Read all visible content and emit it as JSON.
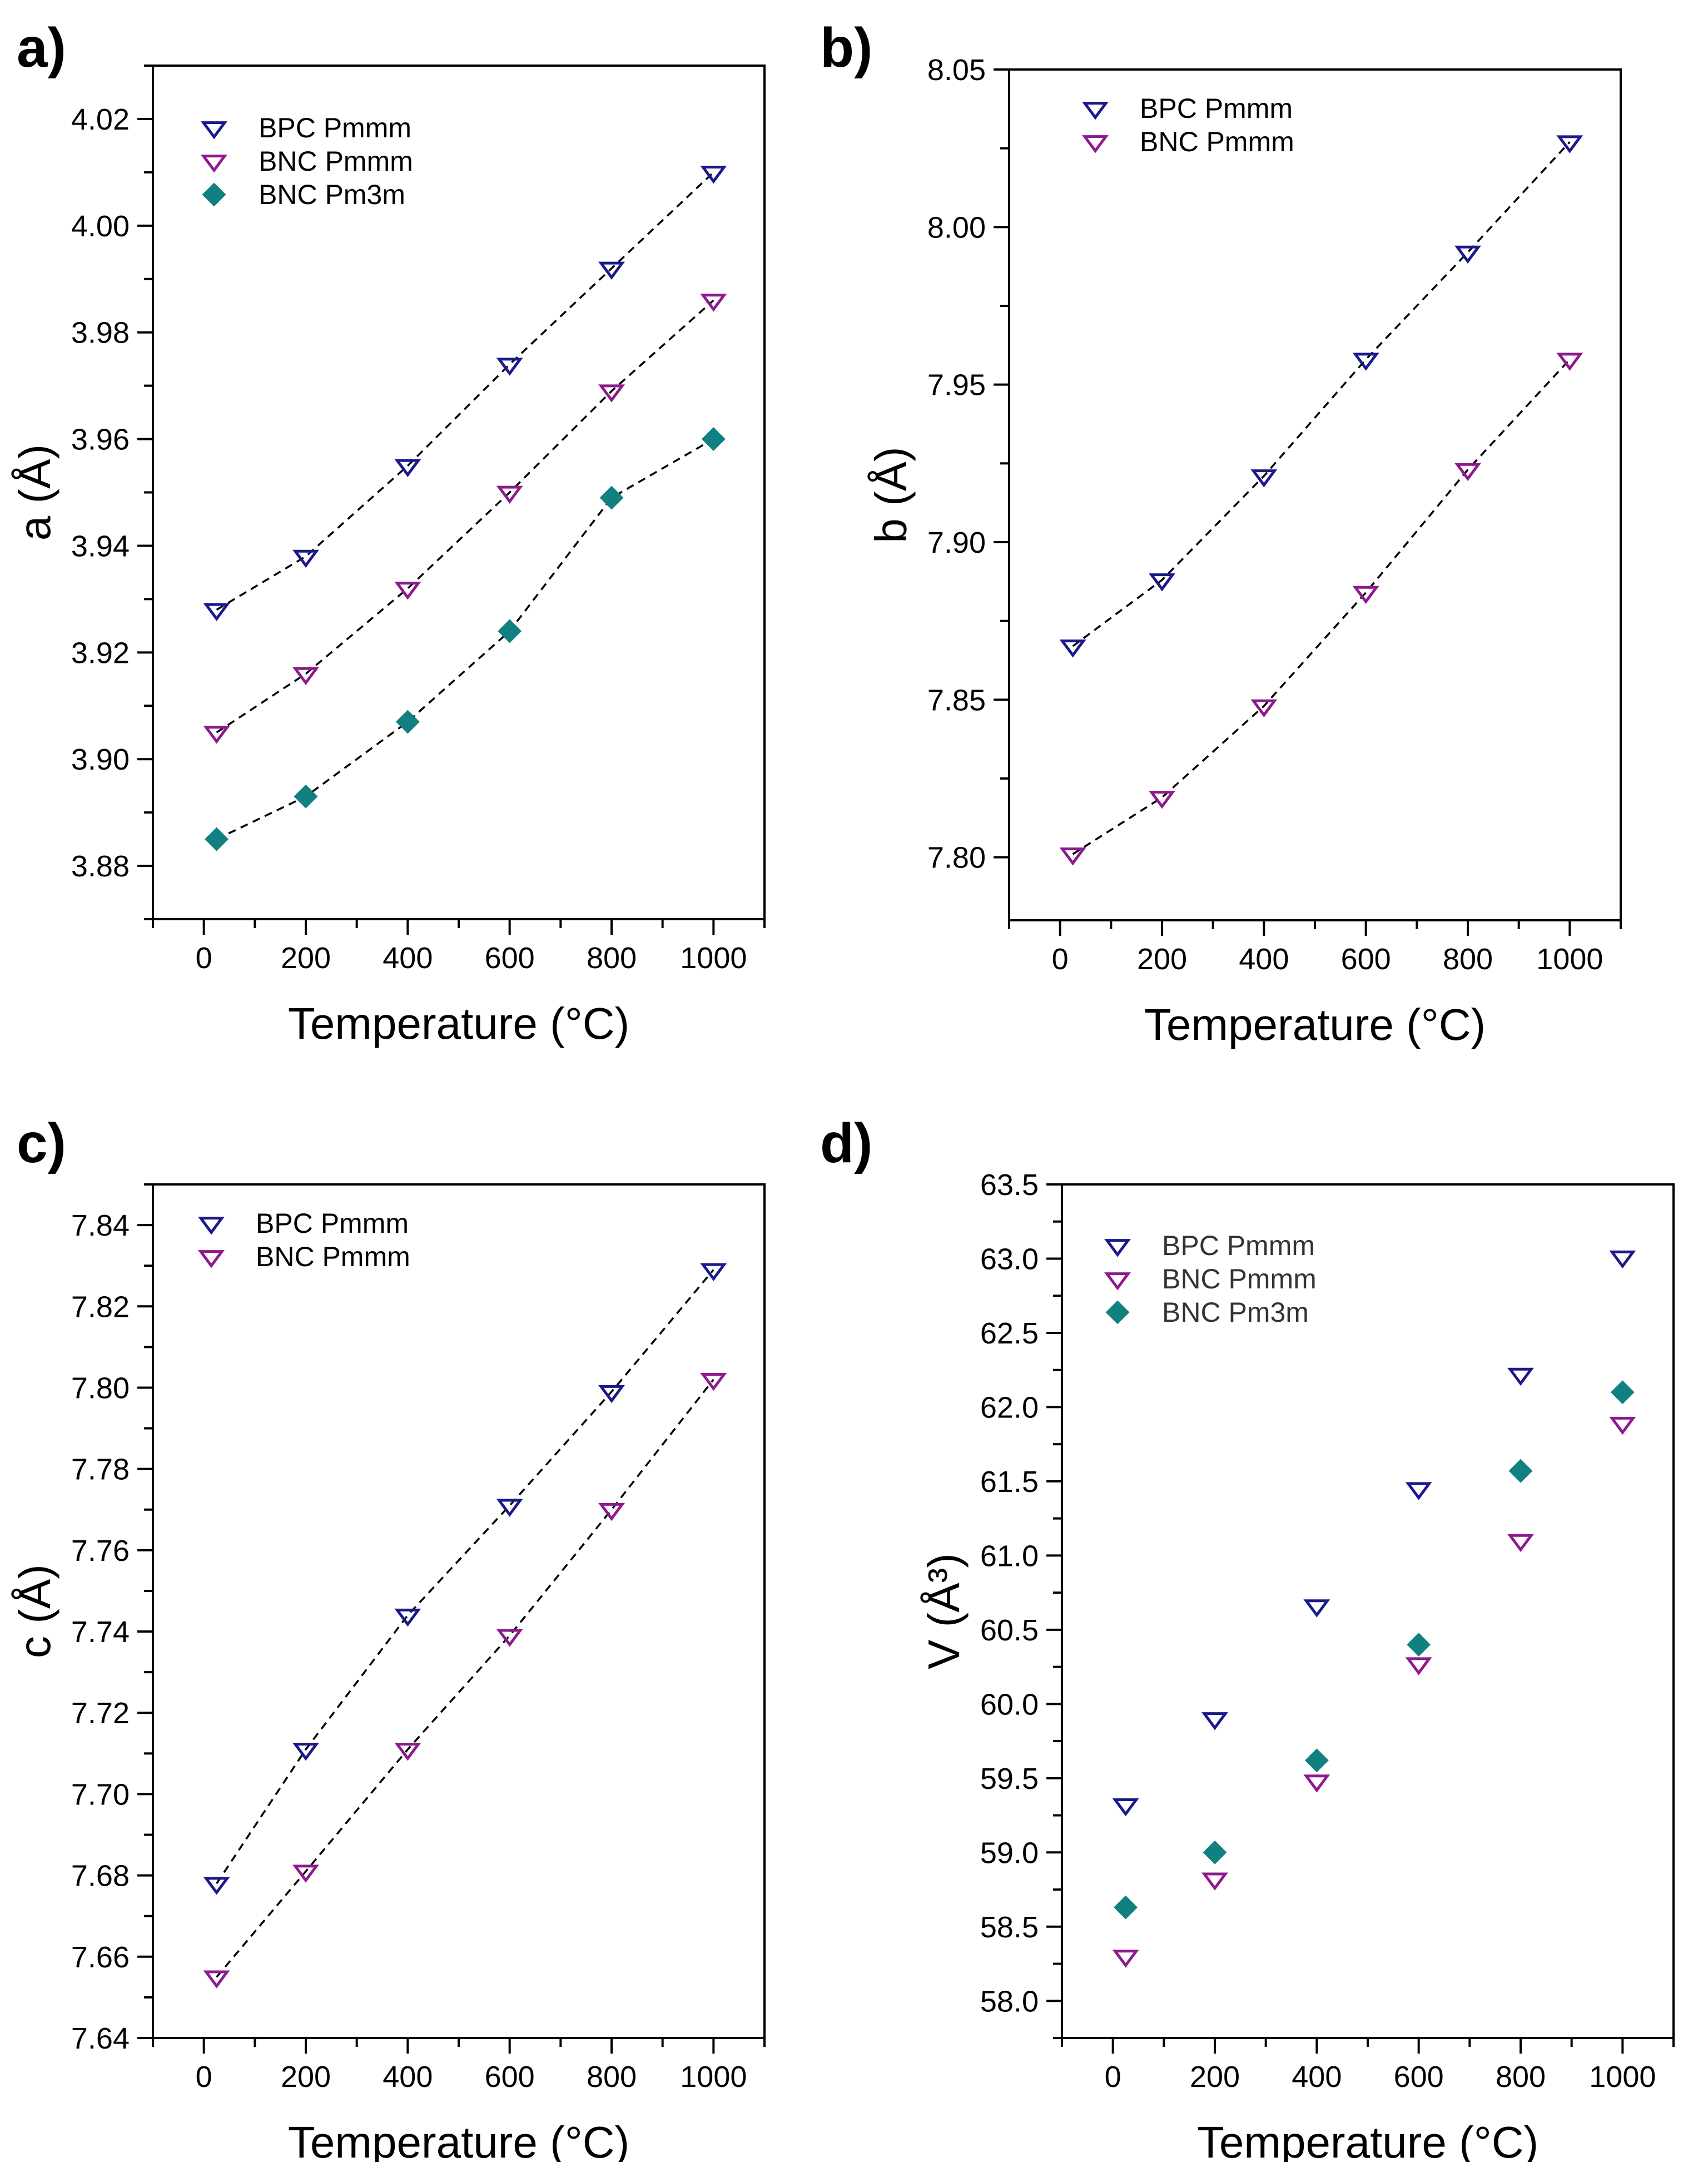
{
  "colors": {
    "bpc_pmmm": "#1a1a8c",
    "bnc_pmmm": "#8e1a8e",
    "bnc_pm3m": "#108080"
  },
  "chart_data": [
    {
      "panel": "a)",
      "type": "scatter",
      "xlabel": "Temperature (°C)",
      "ylabel": "a (Å)",
      "xlim": [
        -100,
        1100
      ],
      "ylim": [
        3.87,
        4.03
      ],
      "xticks": [
        0,
        200,
        400,
        600,
        800,
        1000
      ],
      "yticks": [
        3.88,
        3.9,
        3.92,
        3.94,
        3.96,
        3.98,
        4.0,
        4.02
      ],
      "ytick_labels": [
        "3.88",
        "3.90",
        "3.92",
        "3.94",
        "3.96",
        "3.98",
        "4.00",
        "4.02"
      ],
      "legend_position": "top-left",
      "x": [
        25,
        200,
        400,
        600,
        800,
        1000
      ],
      "series": [
        {
          "name": "BPC Pmmm",
          "marker": "open-triangle-down",
          "color": "#1a1a8c",
          "values": [
            3.928,
            3.938,
            3.955,
            3.974,
            3.992,
            4.01
          ],
          "fit_line": true
        },
        {
          "name": "BNC Pmmm",
          "marker": "open-triangle-down",
          "color": "#8e1a8e",
          "values": [
            3.905,
            3.916,
            3.932,
            3.95,
            3.969,
            3.986
          ],
          "fit_line": true
        },
        {
          "name": "BNC Pm3m",
          "marker": "filled-diamond",
          "color": "#108080",
          "values": [
            3.885,
            3.893,
            3.907,
            3.924,
            3.949,
            3.96
          ],
          "fit_line": true
        }
      ]
    },
    {
      "panel": "b)",
      "type": "scatter",
      "xlabel": "Temperature (°C)",
      "ylabel": "b (Å)",
      "xlim": [
        -100,
        1100
      ],
      "ylim": [
        7.78,
        8.05
      ],
      "xticks": [
        0,
        200,
        400,
        600,
        800,
        1000
      ],
      "yticks": [
        7.8,
        7.85,
        7.9,
        7.95,
        8.0,
        8.05
      ],
      "ytick_labels": [
        "7.80",
        "7.85",
        "7.90",
        "7.95",
        "8.00",
        "8.05"
      ],
      "legend_position": "top-left",
      "x": [
        25,
        200,
        400,
        600,
        800,
        1000
      ],
      "series": [
        {
          "name": "BPC Pmmm",
          "marker": "open-triangle-down",
          "color": "#1a1a8c",
          "values": [
            7.867,
            7.888,
            7.921,
            7.958,
            7.992,
            8.027
          ],
          "fit_line": true
        },
        {
          "name": "BNC Pmmm",
          "marker": "open-triangle-down",
          "color": "#8e1a8e",
          "values": [
            7.801,
            7.819,
            7.848,
            7.884,
            7.923,
            7.958
          ],
          "fit_line": true
        }
      ]
    },
    {
      "panel": "c)",
      "type": "scatter",
      "xlabel": "Temperature (°C)",
      "ylabel": "c (Å)",
      "xlim": [
        -100,
        1100
      ],
      "ylim": [
        7.64,
        7.85
      ],
      "xticks": [
        0,
        200,
        400,
        600,
        800,
        1000
      ],
      "yticks": [
        7.64,
        7.66,
        7.68,
        7.7,
        7.72,
        7.74,
        7.76,
        7.78,
        7.8,
        7.82,
        7.84
      ],
      "ytick_labels": [
        "7.64",
        "7.66",
        "7.68",
        "7.70",
        "7.72",
        "7.74",
        "7.76",
        "7.78",
        "7.80",
        "7.82",
        "7.84"
      ],
      "legend_position": "top-left",
      "x": [
        25,
        200,
        400,
        600,
        800,
        1000
      ],
      "series": [
        {
          "name": "BPC Pmmm",
          "marker": "open-triangle-down",
          "color": "#1a1a8c",
          "values": [
            7.678,
            7.711,
            7.744,
            7.771,
            7.799,
            7.829
          ],
          "fit_line": true
        },
        {
          "name": "BNC Pmmm",
          "marker": "open-triangle-down",
          "color": "#8e1a8e",
          "values": [
            7.655,
            7.681,
            7.711,
            7.739,
            7.77,
            7.802
          ],
          "fit_line": true
        }
      ]
    },
    {
      "panel": "d)",
      "type": "scatter",
      "xlabel": "Temperature (°C)",
      "ylabel": "V (Å³)",
      "xlim": [
        -100,
        1100
      ],
      "ylim": [
        57.75,
        63.5
      ],
      "xticks": [
        0,
        200,
        400,
        600,
        800,
        1000
      ],
      "yticks": [
        58.0,
        58.5,
        59.0,
        59.5,
        60.0,
        60.5,
        61.0,
        61.5,
        62.0,
        62.5,
        63.0,
        63.5
      ],
      "ytick_labels": [
        "58.0",
        "58.5",
        "59.0",
        "59.5",
        "60.0",
        "60.5",
        "61.0",
        "61.5",
        "62.0",
        "62.5",
        "63.0",
        "63.5"
      ],
      "legend_position": "top-left",
      "x": [
        25,
        200,
        400,
        600,
        800,
        1000
      ],
      "series": [
        {
          "name": "BPC Pmmm",
          "marker": "open-triangle-down",
          "color": "#1a1a8c",
          "values": [
            59.32,
            59.9,
            60.66,
            61.45,
            62.22,
            63.01
          ],
          "fit_line": false
        },
        {
          "name": "BNC Pmmm",
          "marker": "open-triangle-down",
          "color": "#8e1a8e",
          "values": [
            58.3,
            58.82,
            59.48,
            60.27,
            61.1,
            61.89
          ],
          "fit_line": false
        },
        {
          "name": "BNC Pm3m",
          "marker": "filled-diamond",
          "color": "#108080",
          "values": [
            58.63,
            59.0,
            59.62,
            60.4,
            61.57,
            62.1
          ],
          "fit_line": false
        }
      ]
    }
  ]
}
